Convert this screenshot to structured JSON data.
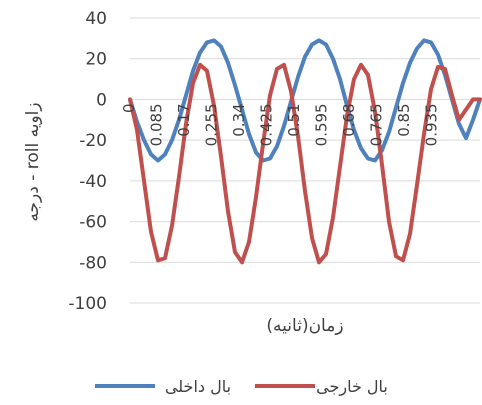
{
  "chart_data": {
    "type": "line",
    "xlabel": "زمان(ثانیه)",
    "ylabel": "زاویه roll - درجه",
    "ylim": [
      -100,
      40
    ],
    "yticks": [
      40,
      20,
      0,
      -20,
      -40,
      -60,
      -80,
      -100
    ],
    "xlim": [
      0,
      1.0
    ],
    "xticks": [
      "0",
      "0.085",
      "0.17",
      "0.255",
      "0.34",
      "0.425",
      "0.51",
      "0.595",
      "0.68",
      "0.765",
      "0.85",
      "0.935"
    ],
    "grid": true,
    "legend_position": "bottom",
    "series": [
      {
        "name": "بال داخلی",
        "color": "#4F81BD",
        "x": [
          0,
          0.02,
          0.04,
          0.06,
          0.08,
          0.1,
          0.12,
          0.14,
          0.16,
          0.18,
          0.2,
          0.22,
          0.24,
          0.26,
          0.28,
          0.3,
          0.32,
          0.34,
          0.36,
          0.38,
          0.4,
          0.42,
          0.44,
          0.46,
          0.48,
          0.5,
          0.52,
          0.54,
          0.56,
          0.58,
          0.6,
          0.62,
          0.64,
          0.66,
          0.68,
          0.7,
          0.72,
          0.74,
          0.76,
          0.78,
          0.8,
          0.82,
          0.84,
          0.86,
          0.88,
          0.9,
          0.92,
          0.94,
          0.96,
          0.98,
          1.0
        ],
        "values": [
          0,
          -11,
          -20,
          -27,
          -30,
          -27,
          -20,
          -10,
          2,
          14,
          23,
          28,
          29,
          26,
          18,
          7,
          -5,
          -17,
          -26,
          -30,
          -29,
          -23,
          -13,
          -1,
          11,
          21,
          27,
          29,
          27,
          20,
          10,
          -3,
          -15,
          -24,
          -29,
          -30,
          -25,
          -16,
          -4,
          8,
          18,
          25,
          29,
          28,
          22,
          12,
          0,
          -12,
          -19,
          -10,
          0
        ]
      },
      {
        "name": "بال خارجی",
        "color": "#C0504D",
        "x": [
          0,
          0.02,
          0.04,
          0.06,
          0.08,
          0.1,
          0.12,
          0.14,
          0.16,
          0.18,
          0.2,
          0.22,
          0.24,
          0.26,
          0.28,
          0.3,
          0.32,
          0.34,
          0.36,
          0.38,
          0.4,
          0.42,
          0.44,
          0.46,
          0.48,
          0.5,
          0.52,
          0.54,
          0.56,
          0.58,
          0.6,
          0.62,
          0.64,
          0.66,
          0.68,
          0.7,
          0.72,
          0.74,
          0.76,
          0.78,
          0.8,
          0.82,
          0.84,
          0.86,
          0.88,
          0.9,
          0.92,
          0.94,
          0.96,
          0.98,
          1.0
        ],
        "values": [
          0,
          -15,
          -40,
          -65,
          -79,
          -78,
          -62,
          -38,
          -12,
          8,
          17,
          14,
          -3,
          -28,
          -55,
          -75,
          -80,
          -70,
          -48,
          -22,
          2,
          15,
          17,
          4,
          -18,
          -45,
          -68,
          -80,
          -76,
          -58,
          -33,
          -8,
          10,
          17,
          12,
          -6,
          -32,
          -60,
          -77,
          -79,
          -66,
          -42,
          -17,
          5,
          16,
          15,
          2,
          -10,
          -5,
          0,
          0
        ]
      }
    ]
  }
}
